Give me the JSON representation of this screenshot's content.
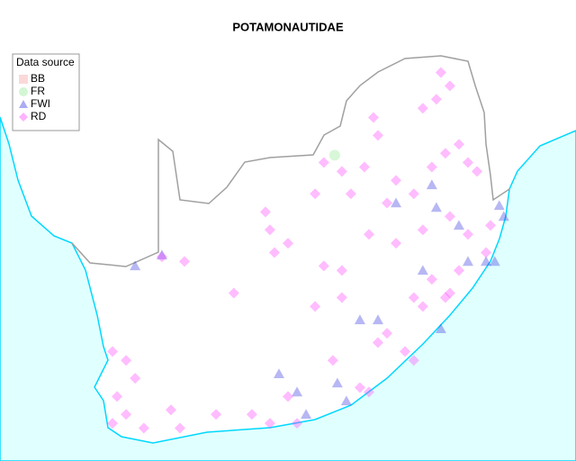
{
  "chart_data": {
    "type": "scatter",
    "title": "POTAMONAUTIDAE",
    "legend_title": "Data source",
    "xlim": [
      13.74,
      35.44
    ],
    "ylim": [
      -35.43,
      -20.99
    ],
    "series": [
      {
        "name": "BB",
        "color": "#f4a0a0",
        "marker": "square",
        "x": [],
        "y": []
      },
      {
        "name": "FR",
        "color": "#90e890",
        "marker": "circle",
        "x": [
          26.35
        ],
        "y": [
          -25.85
        ]
      },
      {
        "name": "FWI",
        "color": "#3030e0",
        "marker": "triangle",
        "x": [
          32.72,
          32.55,
          31.03,
          30.18,
          32.05,
          30.35,
          27.98,
          27.3,
          24.25,
          24.93,
          26.45,
          26.79,
          25.27,
          18.83,
          19.84,
          28.66,
          29.67,
          31.37,
          32.38,
          30.01
        ],
        "y": [
          -27.77,
          -27.43,
          -28.05,
          -27.49,
          -29.18,
          -31.29,
          -31.01,
          -31.01,
          -32.7,
          -33.27,
          -32.99,
          -33.55,
          -33.97,
          -29.32,
          -28.98,
          -27.35,
          -29.46,
          -29.18,
          -29.18,
          -26.78
        ]
      },
      {
        "name": "RD",
        "color": "#ff40ff",
        "marker": "diamond",
        "x": [
          30.35,
          30.69,
          30.18,
          31.03,
          30.52,
          31.37,
          30.01,
          27.81,
          27.98,
          27.47,
          26.62,
          25.94,
          25.61,
          26.96,
          28.32,
          29.33,
          23.74,
          23.91,
          24.59,
          24.08,
          25.94,
          26.62,
          27.64,
          28.66,
          29.67,
          30.69,
          31.37,
          30.01,
          30.52,
          29.67,
          30.69,
          29.33,
          28.32,
          27.98,
          29.0,
          26.62,
          25.61,
          22.55,
          20.69,
          19.84,
          17.98,
          18.49,
          18.15,
          17.98,
          18.49,
          19.16,
          20.52,
          21.88,
          23.23,
          24.59,
          27.3,
          27.64,
          29.33,
          31.03,
          32.05,
          32.22,
          31.71,
          29.67,
          28.66,
          26.28,
          24.93,
          20.18,
          18.83,
          23.91
        ],
        "y": [
          -23.26,
          -23.68,
          -24.1,
          -25.51,
          -25.79,
          -26.08,
          -26.22,
          -24.67,
          -25.23,
          -26.22,
          -26.36,
          -26.08,
          -27.06,
          -27.06,
          -27.35,
          -27.06,
          -27.63,
          -28.19,
          -28.61,
          -28.9,
          -29.32,
          -29.46,
          -28.33,
          -28.61,
          -28.19,
          -27.77,
          -28.33,
          -29.74,
          -30.31,
          -30.59,
          -30.17,
          -30.31,
          -31.43,
          -31.72,
          -32.0,
          -30.31,
          -30.59,
          -30.17,
          -29.18,
          -29.04,
          -32.0,
          -32.28,
          -33.41,
          -34.25,
          -33.97,
          -34.4,
          -34.4,
          -33.97,
          -33.97,
          -33.41,
          -33.13,
          -33.27,
          -32.28,
          -29.46,
          -28.9,
          -28.05,
          -26.36,
          -24.38,
          -26.64,
          -32.28,
          -34.25,
          -33.83,
          -32.84,
          -34.25
        ]
      }
    ]
  }
}
